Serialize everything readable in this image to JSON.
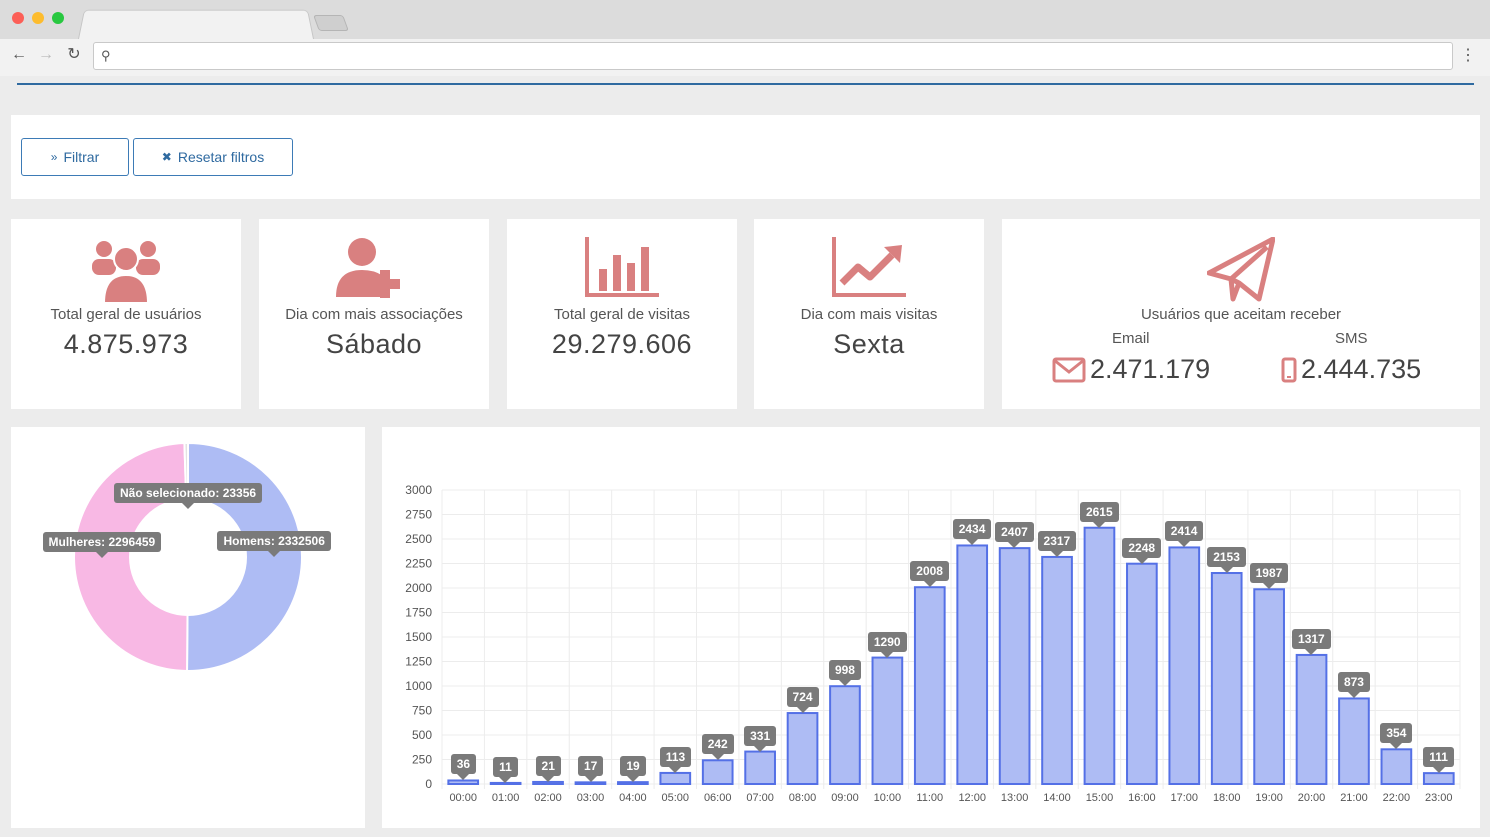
{
  "browser": {
    "url": ""
  },
  "filters": {
    "filter_label": "Filtrar",
    "reset_label": "Resetar filtros"
  },
  "colors": {
    "accent": "#2f6aa0",
    "icon": "#d98080",
    "bar_fill": "#aebcf4",
    "bar_stroke": "#5470e6",
    "pink": "#f8b8e4"
  },
  "stats": {
    "total_users": {
      "label": "Total geral de usuários",
      "value": "4.875.973",
      "icon": "users-icon"
    },
    "top_assoc_day": {
      "label": "Dia com mais associações",
      "value": "Sábado",
      "icon": "user-plus-icon"
    },
    "total_visits": {
      "label": "Total geral de visitas",
      "value": "29.279.606",
      "icon": "bar-chart-icon"
    },
    "top_visit_day": {
      "label": "Dia com mais visitas",
      "value": "Sexta",
      "icon": "line-chart-icon"
    },
    "opt_in": {
      "label": "Usuários que aceitam receber",
      "email_label": "Email",
      "email_value": "2.471.179",
      "sms_label": "SMS",
      "sms_value": "2.444.735",
      "icon": "paper-plane-icon"
    }
  },
  "chart_data": [
    {
      "type": "pie",
      "series": [
        {
          "name": "Homens",
          "value": 2332506,
          "label": "Homens: 2332506",
          "color": "#aebcf4"
        },
        {
          "name": "Mulheres",
          "value": 2296459,
          "label": "Mulheres: 2296459",
          "color": "#f8b8e4"
        },
        {
          "name": "Não selecionado",
          "value": 23356,
          "label": "Não selecionado: 23356",
          "color": "#e3e3e3"
        }
      ]
    },
    {
      "type": "bar",
      "categories": [
        "00:00",
        "01:00",
        "02:00",
        "03:00",
        "04:00",
        "05:00",
        "06:00",
        "07:00",
        "08:00",
        "09:00",
        "10:00",
        "11:00",
        "12:00",
        "13:00",
        "14:00",
        "15:00",
        "16:00",
        "17:00",
        "18:00",
        "19:00",
        "20:00",
        "21:00",
        "22:00",
        "23:00"
      ],
      "values": [
        36,
        11,
        21,
        17,
        19,
        113,
        242,
        331,
        724,
        998,
        1290,
        2008,
        2434,
        2407,
        2317,
        2615,
        2248,
        2414,
        2153,
        1987,
        1317,
        873,
        354,
        111
      ],
      "yticks": [
        "0",
        "250",
        "500",
        "750",
        "1000",
        "1250",
        "1500",
        "1750",
        "2000",
        "2250",
        "2500",
        "2750",
        "3000"
      ],
      "ylim": [
        0,
        3000
      ],
      "grid": true
    }
  ]
}
